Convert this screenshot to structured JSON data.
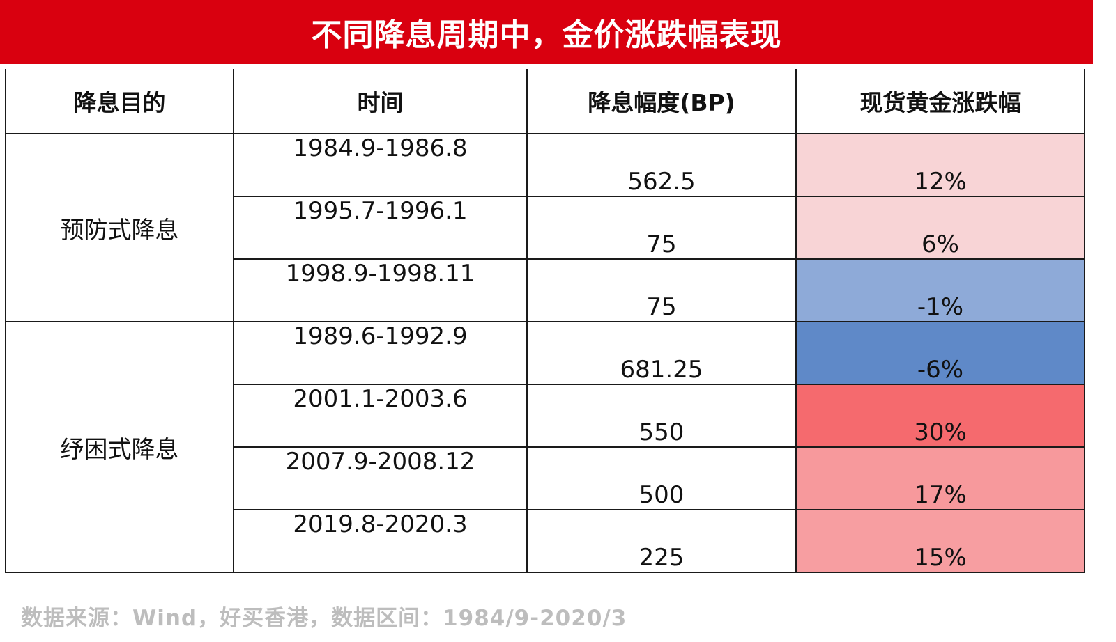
{
  "title": "不同降息周期中，金价涨跌幅表现",
  "chart_data": {
    "type": "table",
    "columns": [
      "降息目的",
      "时间",
      "降息幅度(BP)",
      "现货黄金涨跌幅"
    ],
    "groups": [
      {
        "purpose": "预防式降息",
        "rows": [
          {
            "period": "1984.9-1986.8",
            "bp": "562.5",
            "change": "12%",
            "change_value": 12,
            "color": "#f8d4d6"
          },
          {
            "period": "1995.7-1996.1",
            "bp": "75",
            "change": "6%",
            "change_value": 6,
            "color": "#f8d4d6"
          },
          {
            "period": "1998.9-1998.11",
            "bp": "75",
            "change": "-1%",
            "change_value": -1,
            "color": "#8eaad8"
          }
        ]
      },
      {
        "purpose": "纾困式降息",
        "rows": [
          {
            "period": "1989.6-1992.9",
            "bp": "681.25",
            "change": "-6%",
            "change_value": -6,
            "color": "#5f89c8"
          },
          {
            "period": "2001.1-2003.6",
            "bp": "550",
            "change": "30%",
            "change_value": 30,
            "color": "#f56a6e"
          },
          {
            "period": "2007.9-2008.12",
            "bp": "500",
            "change": "17%",
            "change_value": 17,
            "color": "#f7999c"
          },
          {
            "period": "2019.8-2020.3",
            "bp": "225",
            "change": "15%",
            "change_value": 15,
            "color": "#f79ea1"
          }
        ]
      }
    ]
  },
  "footer": "数据来源：Wind，好买香港，数据区间：1984/9-2020/3"
}
